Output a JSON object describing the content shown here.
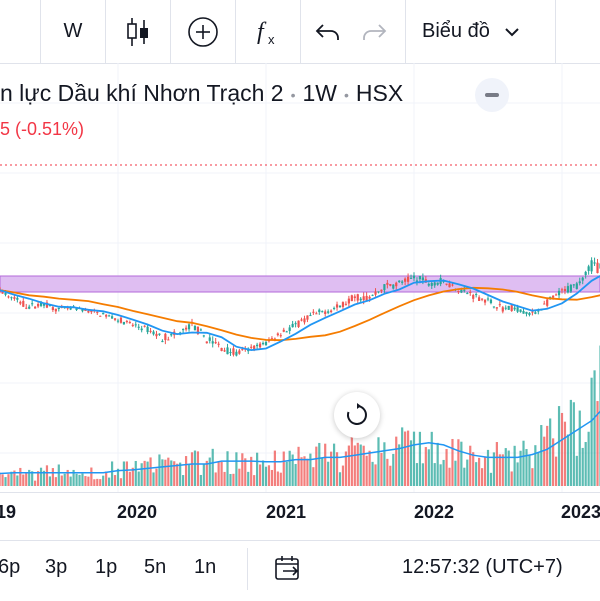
{
  "toolbar": {
    "interval_label": "W",
    "candles_icon": "candlestick-icon",
    "add_icon": "plus-circle-icon",
    "indicators_icon": "fx-icon",
    "undo_icon": "undo-icon",
    "redo_icon": "redo-icon",
    "chart_type_label": "Biểu đồ",
    "chevron_icon": "chevron-down-icon"
  },
  "legend": {
    "name": "n lực Dầu khí Nhơn Trạch 2",
    "interval": "1W",
    "exchange": "HSX",
    "change": "5 (-0.51%)"
  },
  "colors": {
    "up": "#26a69a",
    "down": "#ef5350",
    "ma_fast": "#2196f3",
    "ma_slow": "#f57c00",
    "zone": "#d9b3f0",
    "zone_border": "#b36ad9",
    "price_line": "#f23645"
  },
  "chart_data": {
    "type": "candlestick",
    "x_tick_labels": [
      "19",
      "2020",
      "2021",
      "2022",
      "2023"
    ],
    "grid": true,
    "legend": "top-left",
    "price_series": [
      [
        0.0,
        20.2,
        20.9,
        19.7,
        20.5
      ],
      [
        0.1,
        20.5,
        20.6,
        19.4,
        19.6
      ],
      [
        0.2,
        19.6,
        20.4,
        19.2,
        20.1
      ],
      [
        0.3,
        20.1,
        20.3,
        18.8,
        19.0
      ],
      [
        0.4,
        19.0,
        19.3,
        18.0,
        18.3
      ],
      [
        0.5,
        18.3,
        18.9,
        17.8,
        18.6
      ],
      [
        0.6,
        18.6,
        18.8,
        17.7,
        17.9
      ],
      [
        0.7,
        17.9,
        18.3,
        17.5,
        18.1
      ],
      [
        0.8,
        18.1,
        18.6,
        17.6,
        17.8
      ],
      [
        0.9,
        17.8,
        18.0,
        17.2,
        17.4
      ],
      [
        1.0,
        17.4,
        17.7,
        16.6,
        16.9
      ],
      [
        1.1,
        16.9,
        17.2,
        16.0,
        16.3
      ],
      [
        1.2,
        16.3,
        16.8,
        15.5,
        15.8
      ],
      [
        1.3,
        15.8,
        16.3,
        14.6,
        14.9
      ],
      [
        1.4,
        14.9,
        15.5,
        14.3,
        15.2
      ],
      [
        1.5,
        15.2,
        16.6,
        15.0,
        16.3
      ],
      [
        1.6,
        16.3,
        16.6,
        14.6,
        14.8
      ],
      [
        1.7,
        14.8,
        15.2,
        13.6,
        13.8
      ],
      [
        1.8,
        13.8,
        14.2,
        12.9,
        13.2
      ],
      [
        1.9,
        13.2,
        14.0,
        12.8,
        13.7
      ],
      [
        2.0,
        13.7,
        14.6,
        13.3,
        14.3
      ],
      [
        2.1,
        14.3,
        15.7,
        14.0,
        15.5
      ],
      [
        2.2,
        15.5,
        16.5,
        15.2,
        16.2
      ],
      [
        2.3,
        16.2,
        17.4,
        15.9,
        17.2
      ],
      [
        2.4,
        17.2,
        18.1,
        16.8,
        17.8
      ],
      [
        2.5,
        17.8,
        18.6,
        17.3,
        18.3
      ],
      [
        2.6,
        18.3,
        19.6,
        18.0,
        19.4
      ],
      [
        2.7,
        19.4,
        20.1,
        18.8,
        19.2
      ],
      [
        2.8,
        19.2,
        20.6,
        18.9,
        20.4
      ],
      [
        2.9,
        20.4,
        21.3,
        19.9,
        20.8
      ],
      [
        3.0,
        20.8,
        21.8,
        20.1,
        21.4
      ],
      [
        3.1,
        21.4,
        22.1,
        20.6,
        20.9
      ],
      [
        3.2,
        20.9,
        21.6,
        20.4,
        21.0
      ],
      [
        3.3,
        21.0,
        21.3,
        19.9,
        20.2
      ],
      [
        3.4,
        20.2,
        20.6,
        19.2,
        19.5
      ],
      [
        3.5,
        19.5,
        19.9,
        18.6,
        18.9
      ],
      [
        3.6,
        18.9,
        19.3,
        17.8,
        18.1
      ],
      [
        3.7,
        18.1,
        18.6,
        17.5,
        18.0
      ],
      [
        3.8,
        18.0,
        18.4,
        17.1,
        17.4
      ],
      [
        3.9,
        17.4,
        18.9,
        17.2,
        18.7
      ],
      [
        4.0,
        18.7,
        20.3,
        18.5,
        19.8
      ],
      [
        4.1,
        19.8,
        21.0,
        19.5,
        20.6
      ],
      [
        4.2,
        20.6,
        23.2,
        20.4,
        22.8
      ],
      [
        4.3,
        22.8,
        23.6,
        22.0,
        22.5
      ],
      [
        4.4,
        22.5,
        24.6,
        22.3,
        24.3
      ],
      [
        4.5,
        24.3,
        25.0,
        23.4,
        23.7
      ],
      [
        4.6,
        23.7,
        25.4,
        23.4,
        25.1
      ],
      [
        4.7,
        25.1,
        26.3,
        24.1,
        24.5
      ],
      [
        4.8,
        24.5,
        26.0,
        23.4,
        23.9
      ],
      [
        4.9,
        23.9,
        28.4,
        23.6,
        27.8
      ],
      [
        5.0,
        27.8,
        31.3,
        27.1,
        30.6
      ],
      [
        5.1,
        30.6,
        31.5,
        28.4,
        29.0
      ],
      [
        5.2,
        29.0,
        31.2,
        28.0,
        28.4
      ],
      [
        5.3,
        28.4,
        33.4,
        27.3,
        33.0
      ],
      [
        5.4,
        33.0,
        33.9,
        30.8,
        31.2
      ],
      [
        5.5,
        31.2,
        31.8,
        25.1,
        27.5
      ],
      [
        5.6,
        27.5,
        30.3,
        27.0,
        29.9
      ],
      [
        5.7,
        29.9,
        32.5,
        29.0,
        31.9
      ],
      [
        5.8,
        31.9,
        33.1,
        30.5,
        30.9
      ],
      [
        5.9,
        30.9,
        32.0,
        30.3,
        31.5
      ],
      [
        6.0,
        31.5,
        32.3,
        30.9,
        31.3
      ]
    ],
    "volume_series": [
      [
        0.0,
        0.6
      ],
      [
        0.1,
        0.5
      ],
      [
        0.2,
        0.6
      ],
      [
        0.3,
        0.7
      ],
      [
        0.4,
        0.5
      ],
      [
        0.5,
        0.6
      ],
      [
        0.6,
        0.7
      ],
      [
        0.7,
        0.5
      ],
      [
        0.8,
        0.6
      ],
      [
        0.9,
        0.7
      ],
      [
        1.0,
        0.8
      ],
      [
        1.1,
        0.7
      ],
      [
        1.2,
        0.9
      ],
      [
        1.3,
        1.0
      ],
      [
        1.4,
        0.9
      ],
      [
        1.5,
        1.1
      ],
      [
        1.6,
        1.0
      ],
      [
        1.7,
        1.3
      ],
      [
        1.8,
        1.1
      ],
      [
        1.9,
        1.0
      ],
      [
        2.0,
        1.2
      ],
      [
        2.1,
        1.1
      ],
      [
        2.2,
        1.3
      ],
      [
        2.3,
        1.2
      ],
      [
        2.4,
        1.4
      ],
      [
        2.5,
        1.3
      ],
      [
        2.6,
        1.5
      ],
      [
        2.7,
        1.7
      ],
      [
        2.8,
        1.6
      ],
      [
        2.9,
        1.8
      ],
      [
        3.0,
        2.2
      ],
      [
        3.1,
        1.9
      ],
      [
        3.2,
        1.5
      ],
      [
        3.3,
        1.4
      ],
      [
        3.4,
        1.3
      ],
      [
        3.5,
        1.2
      ],
      [
        3.6,
        1.4
      ],
      [
        3.7,
        1.3
      ],
      [
        3.8,
        1.6
      ],
      [
        3.9,
        2.1
      ],
      [
        4.0,
        2.6
      ],
      [
        4.1,
        2.9
      ],
      [
        4.2,
        3.4
      ],
      [
        4.3,
        4.8
      ],
      [
        4.4,
        3.8
      ],
      [
        4.5,
        3.2
      ],
      [
        4.6,
        3.6
      ],
      [
        4.7,
        2.9
      ],
      [
        4.8,
        2.6
      ],
      [
        4.9,
        5.2
      ],
      [
        5.0,
        6.9
      ],
      [
        5.1,
        4.8
      ],
      [
        5.2,
        4.1
      ],
      [
        5.3,
        6.2
      ],
      [
        5.4,
        5.0
      ],
      [
        5.5,
        4.4
      ],
      [
        5.6,
        5.4
      ],
      [
        5.7,
        3.8
      ],
      [
        5.8,
        2.7
      ],
      [
        5.9,
        2.4
      ],
      [
        6.0,
        2.2
      ]
    ]
  },
  "axis": {
    "labels": [
      "19",
      "2020",
      "2021",
      "2022",
      "2023"
    ]
  },
  "bottom": {
    "ranges": [
      "6p",
      "3p",
      "1p",
      "5n",
      "1n"
    ],
    "goto_icon": "calendar-goto-icon",
    "clock": "12:57:32 (UTC+7)"
  },
  "reset_icon": "reset-icon"
}
